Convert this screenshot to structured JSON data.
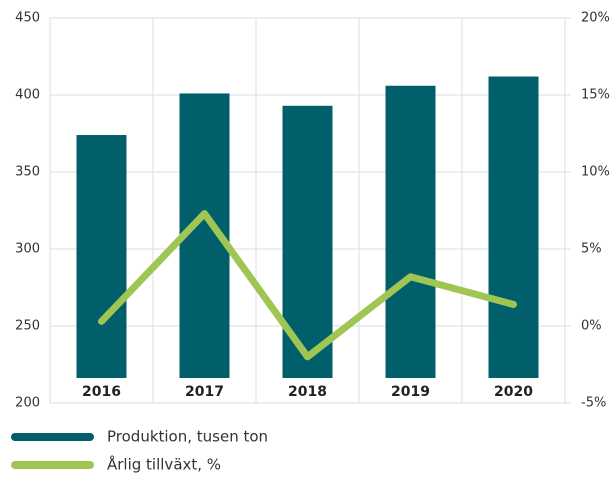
{
  "chart_data": {
    "type": "bar",
    "categories": [
      "2016",
      "2017",
      "2018",
      "2019",
      "2020"
    ],
    "series": [
      {
        "name": "Produktion, tusen ton",
        "type": "bar",
        "axis": "y",
        "color": "#005f6b",
        "values": [
          374,
          401,
          393,
          406,
          412
        ]
      },
      {
        "name": "Årlig tillväxt, %",
        "type": "line",
        "axis": "y2",
        "color": "#9fc553",
        "values": [
          0.3,
          7.3,
          -2.0,
          3.2,
          1.4
        ]
      }
    ],
    "ylim": [
      200,
      450
    ],
    "yticks": [
      200,
      250,
      300,
      350,
      400,
      450
    ],
    "y2lim": [
      -5,
      20
    ],
    "y2ticks": [
      {
        "value": -5,
        "label": "-5%"
      },
      {
        "value": 0,
        "label": "0%"
      },
      {
        "value": 5,
        "label": "5%"
      },
      {
        "value": 10,
        "label": "10%"
      },
      {
        "value": 15,
        "label": "15%"
      },
      {
        "value": 20,
        "label": "20%"
      }
    ],
    "grid": true,
    "legend": "bottom"
  }
}
